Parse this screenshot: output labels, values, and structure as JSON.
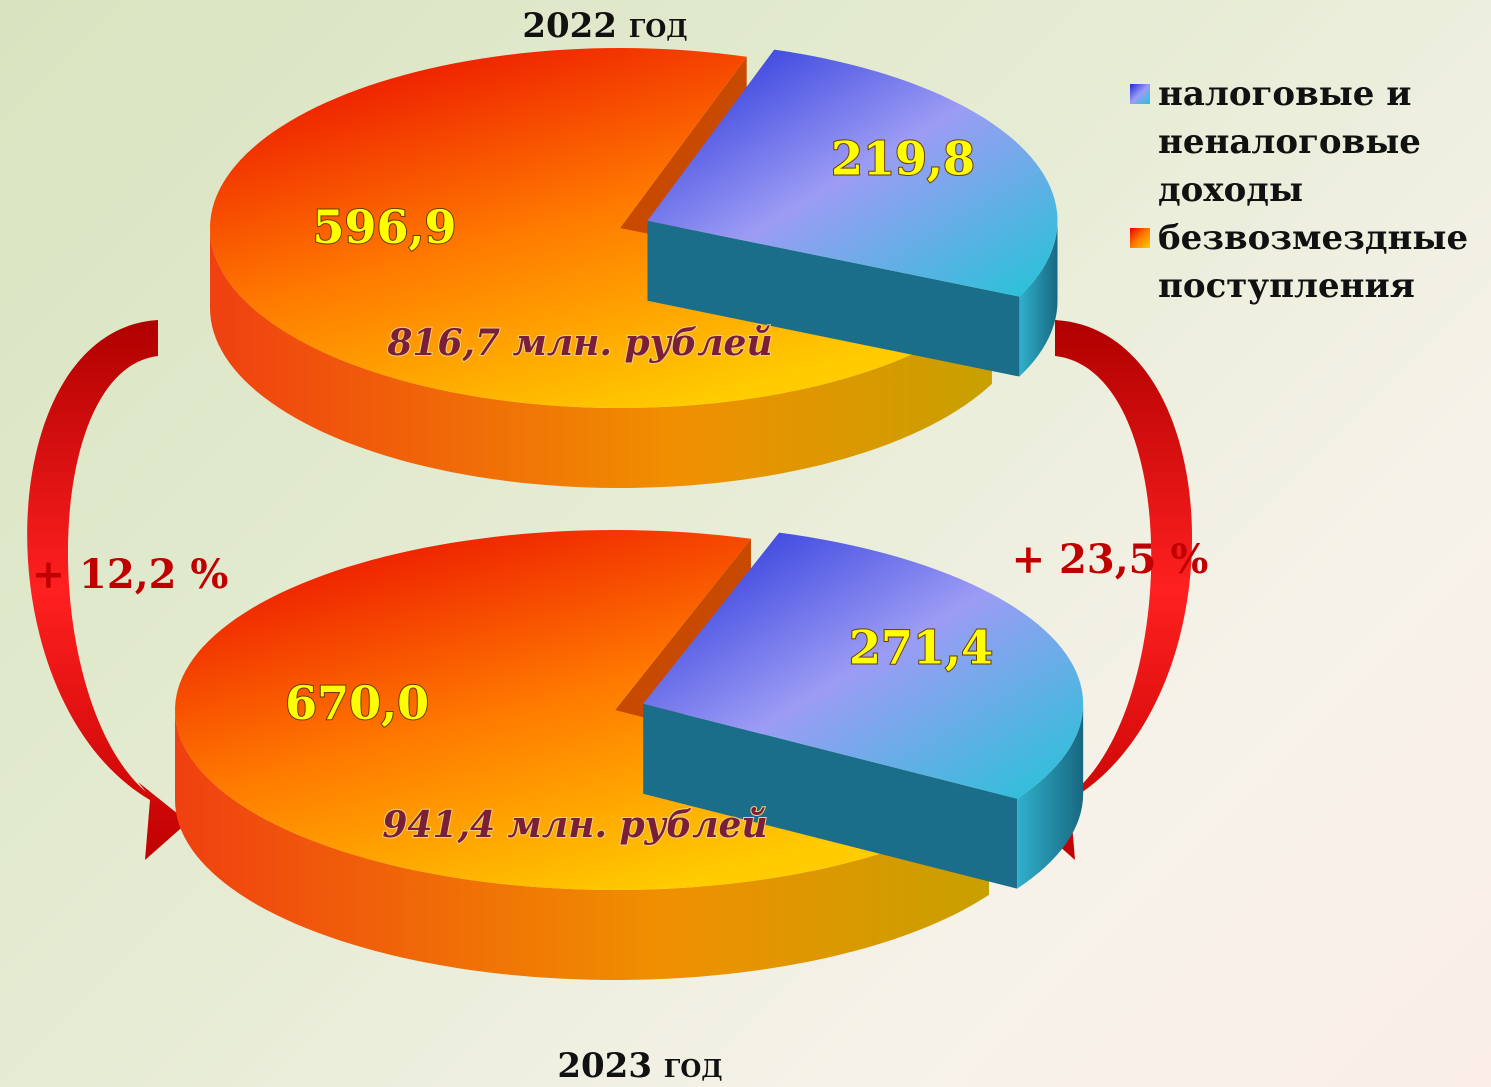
{
  "chart_data": [
    {
      "type": "pie",
      "title": "2022 год",
      "categories": [
        "налоговые и неналоговые доходы",
        "безвозмездные поступления"
      ],
      "values": [
        219.8,
        596.9
      ],
      "value_labels": [
        "219,8",
        "596,9"
      ],
      "colors": [
        "#9c9cf4",
        "#ff7a00"
      ],
      "total_label": "816,7 млн. рублей",
      "legend": "right"
    },
    {
      "type": "pie",
      "title": "2023 год",
      "categories": [
        "налоговые и неналоговые доходы",
        "безвозмездные поступления"
      ],
      "values": [
        271.4,
        670.0
      ],
      "value_labels": [
        "271,4",
        "670,0"
      ],
      "colors": [
        "#9c9cf4",
        "#ff7a00"
      ],
      "total_label": "941,4 млн. рублей"
    }
  ],
  "annotations": [
    "+ 12,2 %",
    "+ 23,5 %"
  ]
}
